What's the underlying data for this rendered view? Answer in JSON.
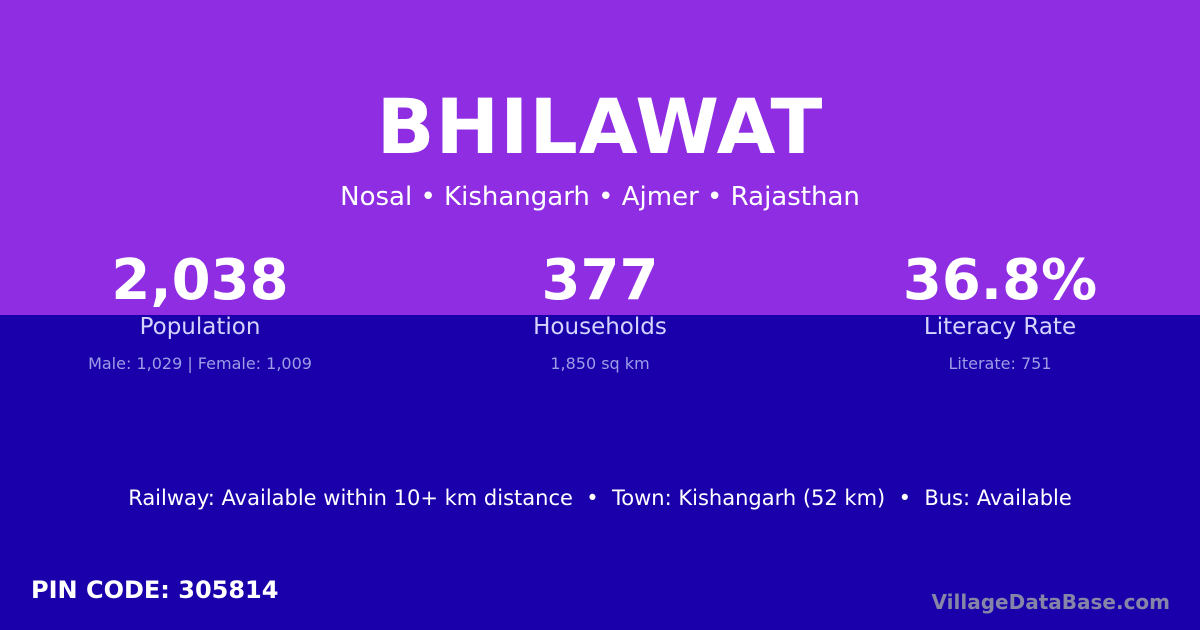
{
  "village": {
    "name": "BHILAWAT",
    "hierarchy": "Nosal • Kishangarh • Ajmer • Rajasthan"
  },
  "stats": [
    {
      "value": "2,038",
      "label": "Population",
      "detail": "Male: 1,029 | Female: 1,009"
    },
    {
      "value": "377",
      "label": "Households",
      "detail": "1,850 sq km"
    },
    {
      "value": "36.8%",
      "label": "Literacy Rate",
      "detail": "Literate: 751"
    }
  ],
  "connectivity": "Railway: Available within 10+ km distance  •  Town: Kishangarh (52 km)  •  Bus: Available",
  "pin_code": "PIN CODE: 305814",
  "brand": "VillageDataBase.com",
  "colors": {
    "top_background": "#8e2de2",
    "bottom_background": "#1a00aa"
  }
}
